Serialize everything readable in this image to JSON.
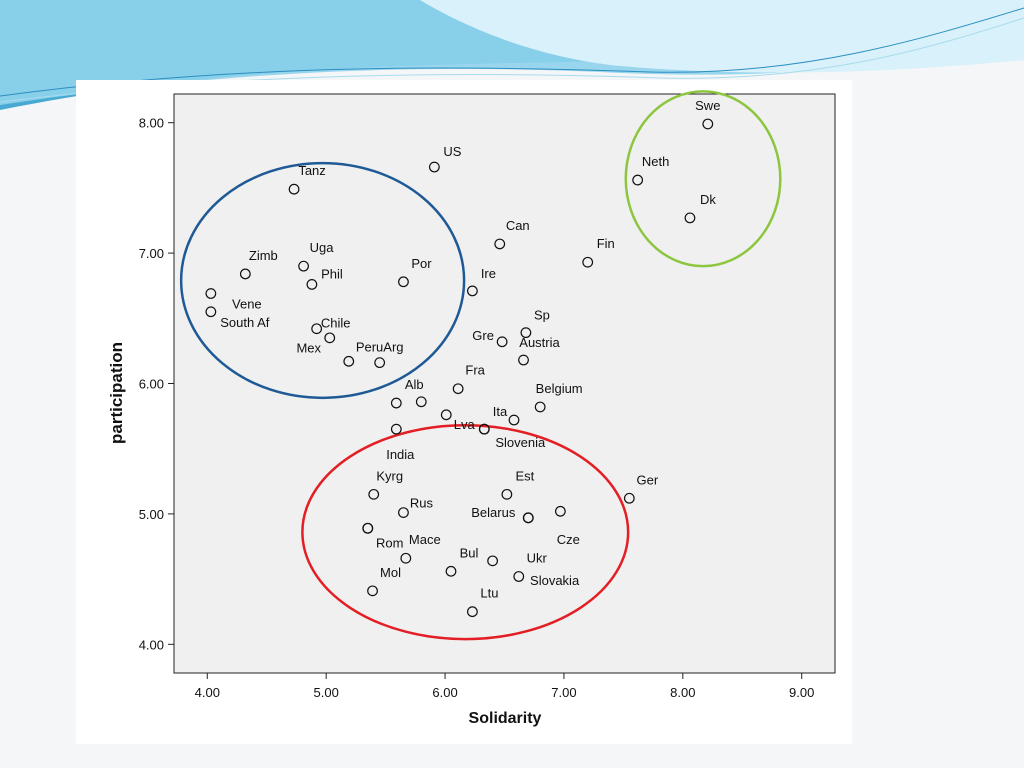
{
  "slide": {
    "colors": {
      "wave_light": "#bfe8f6",
      "wave_mid": "#7fcde8",
      "wave_dark": "#3aa6d0",
      "card": "#ffffff"
    }
  },
  "chart_data": {
    "type": "scatter",
    "title": "",
    "xlabel": "Solidarity",
    "ylabel": "participation",
    "xlim": [
      3.72,
      9.28
    ],
    "ylim": [
      3.78,
      8.22
    ],
    "xticks": [
      "4.00",
      "5.00",
      "6.00",
      "7.00",
      "8.00",
      "9.00"
    ],
    "yticks": [
      "4.00",
      "5.00",
      "6.00",
      "7.00",
      "8.00"
    ],
    "grid": false,
    "plot_background": "#f0f0f0",
    "marker_color": "#111111",
    "points": [
      {
        "label": "Swe",
        "x": 8.21,
        "y": 7.99
      },
      {
        "label": "US",
        "x": 5.91,
        "y": 7.66
      },
      {
        "label": "Neth",
        "x": 7.62,
        "y": 7.56
      },
      {
        "label": "Tanz",
        "x": 4.73,
        "y": 7.49
      },
      {
        "label": "Dk",
        "x": 8.06,
        "y": 7.27
      },
      {
        "label": "Can",
        "x": 6.46,
        "y": 7.07
      },
      {
        "label": "Fin",
        "x": 7.2,
        "y": 6.93
      },
      {
        "label": "Zimb",
        "x": 4.32,
        "y": 6.84
      },
      {
        "label": "Uga",
        "x": 4.81,
        "y": 6.9
      },
      {
        "label": "Phil",
        "x": 4.88,
        "y": 6.76
      },
      {
        "label": "Por",
        "x": 5.65,
        "y": 6.78
      },
      {
        "label": "Ire",
        "x": 6.23,
        "y": 6.71
      },
      {
        "label": "Vene",
        "x": 4.03,
        "y": 6.69
      },
      {
        "label": "South Af",
        "x": 4.03,
        "y": 6.55
      },
      {
        "label": "Chile",
        "x": 4.92,
        "y": 6.42
      },
      {
        "label": "",
        "x": 5.03,
        "y": 6.35
      },
      {
        "label": "Sp",
        "x": 6.68,
        "y": 6.39
      },
      {
        "label": "Gre",
        "x": 6.48,
        "y": 6.32
      },
      {
        "label": "Austria",
        "x": 6.66,
        "y": 6.18
      },
      {
        "label": "Mex",
        "x": 5.19,
        "y": 6.17
      },
      {
        "label": "PeruArg",
        "x": 5.45,
        "y": 6.16
      },
      {
        "label": "Fra",
        "x": 6.11,
        "y": 5.96
      },
      {
        "label": "Alb",
        "x": 5.8,
        "y": 5.86
      },
      {
        "label": "",
        "x": 5.59,
        "y": 5.85
      },
      {
        "label": "Belgium",
        "x": 6.8,
        "y": 5.82
      },
      {
        "label": "Ita",
        "x": 6.58,
        "y": 5.72
      },
      {
        "label": "",
        "x": 6.01,
        "y": 5.76
      },
      {
        "label": "India",
        "x": 5.59,
        "y": 5.65
      },
      {
        "label": "Lva",
        "x": 6.33,
        "y": 5.65
      },
      {
        "label": "Slovenia",
        "x": 6.33,
        "y": 5.65
      },
      {
        "label": "Kyrg",
        "x": 5.4,
        "y": 5.15
      },
      {
        "label": "Est",
        "x": 6.52,
        "y": 5.15
      },
      {
        "label": "Ger",
        "x": 7.55,
        "y": 5.12
      },
      {
        "label": "Rus",
        "x": 5.65,
        "y": 5.01
      },
      {
        "label": "",
        "x": 6.97,
        "y": 5.02
      },
      {
        "label": "Cze",
        "x": 6.7,
        "y": 4.97
      },
      {
        "label": "",
        "x": 5.35,
        "y": 4.89
      },
      {
        "label": "Belarus",
        "x": 6.7,
        "y": 4.97
      },
      {
        "label": "Rom",
        "x": 5.35,
        "y": 4.89
      },
      {
        "label": "Mace",
        "x": 5.67,
        "y": 4.66
      },
      {
        "label": "Slovakia",
        "x": 6.4,
        "y": 4.64
      },
      {
        "label": "Bul",
        "x": 6.05,
        "y": 4.56
      },
      {
        "label": "Ukr",
        "x": 6.62,
        "y": 4.52
      },
      {
        "label": "Mol",
        "x": 5.39,
        "y": 4.41
      },
      {
        "label": "Ltu",
        "x": 6.23,
        "y": 4.25
      }
    ],
    "ellipses": [
      {
        "name": "green-group",
        "cx": 8.17,
        "cy": 7.57,
        "rx": 0.65,
        "ry": 0.67,
        "color": "#8cc63f"
      },
      {
        "name": "blue-group",
        "cx": 4.97,
        "cy": 6.79,
        "rx": 1.19,
        "ry": 0.9,
        "color": "#1f5a96"
      },
      {
        "name": "red-group",
        "cx": 6.17,
        "cy": 4.86,
        "rx": 1.37,
        "ry": 0.82,
        "color": "#e31e24"
      }
    ]
  }
}
